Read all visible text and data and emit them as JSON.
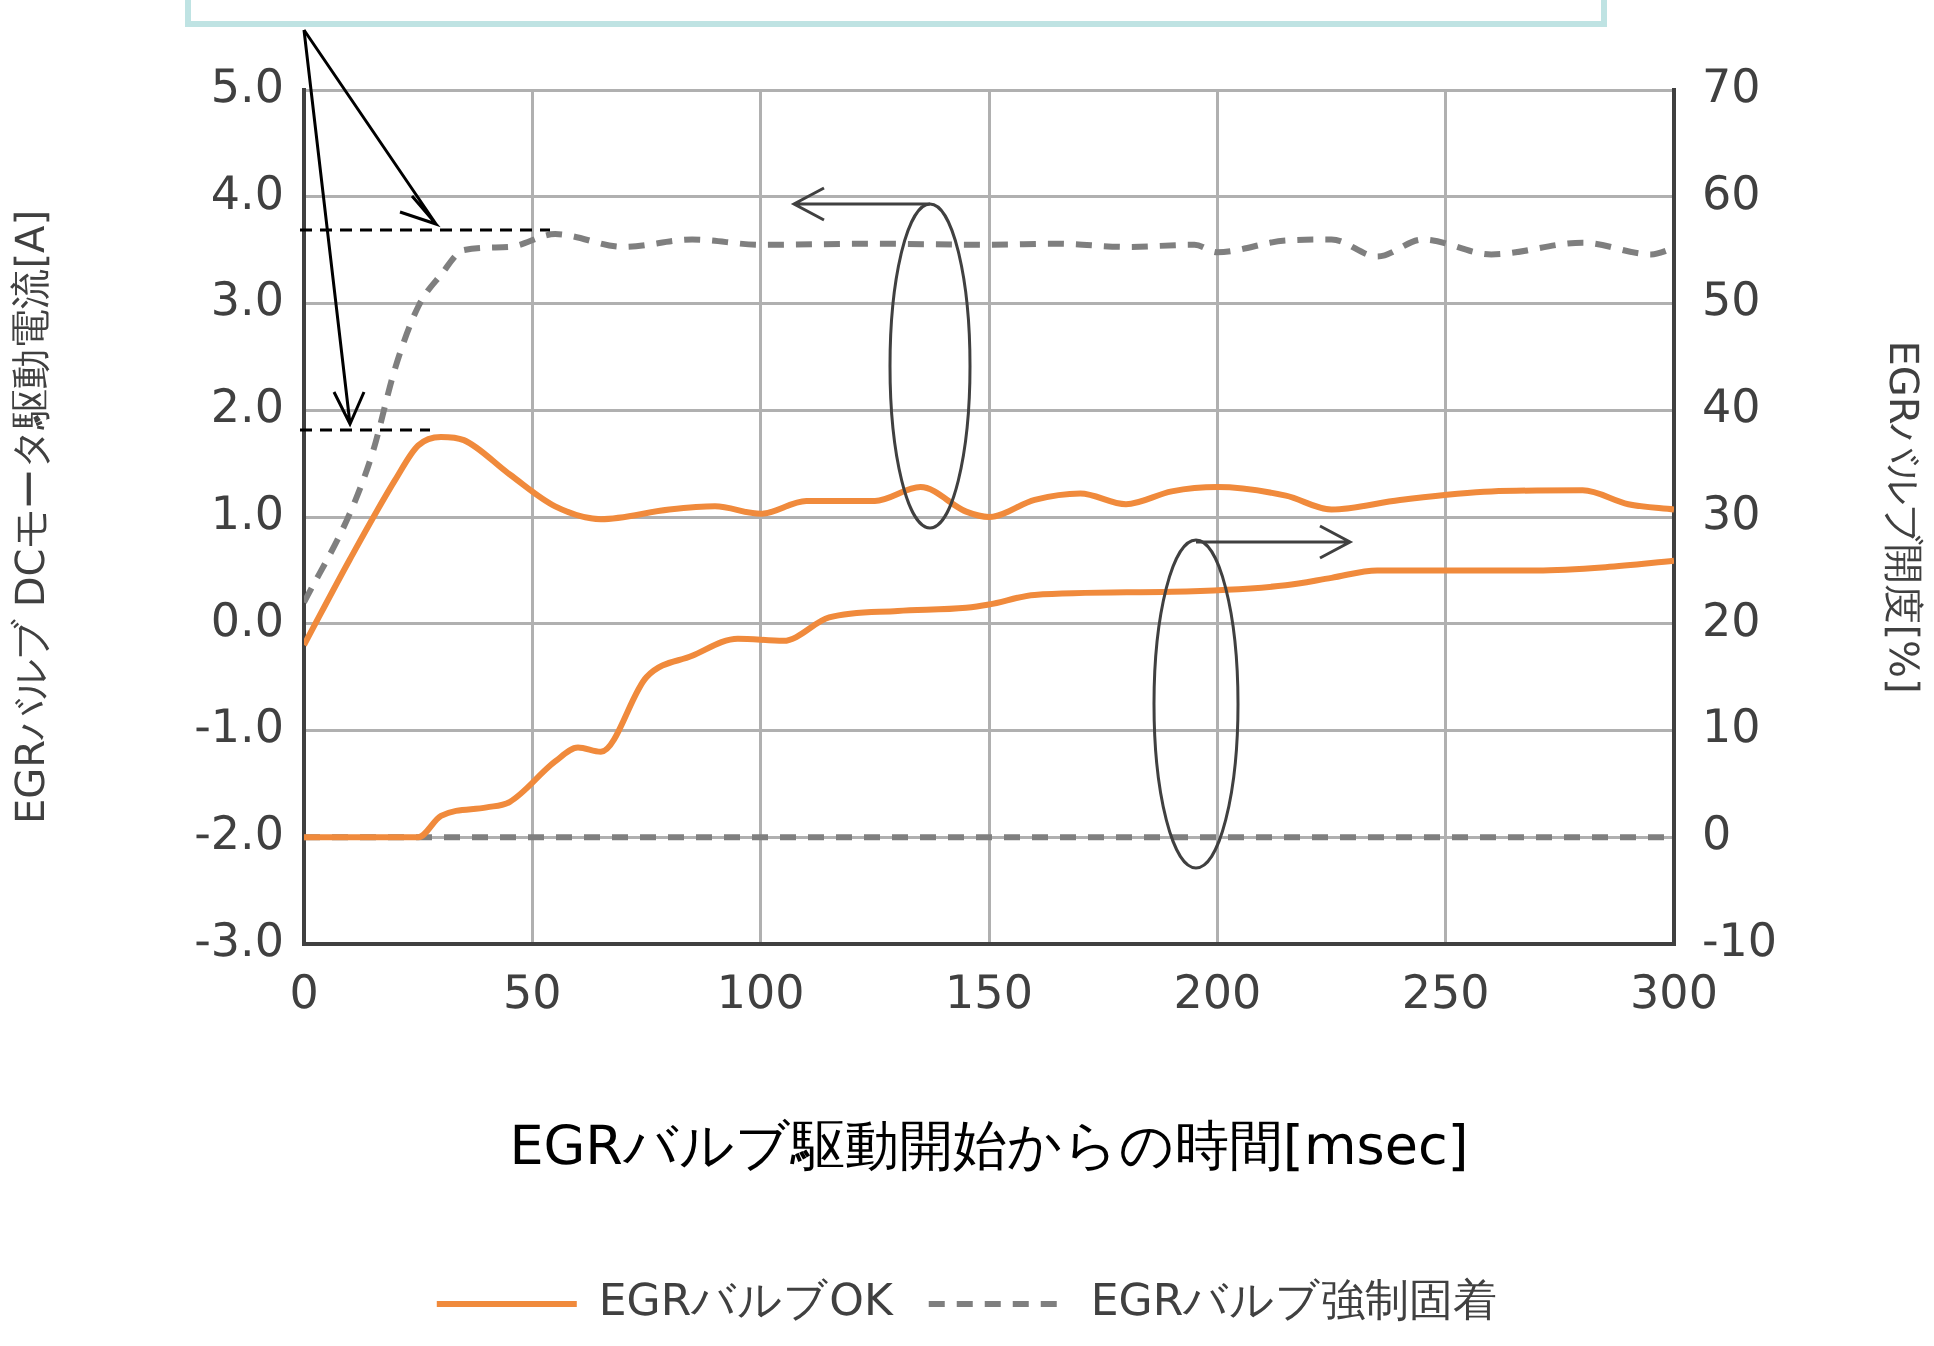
{
  "chart_data": {
    "type": "line",
    "xlabel": "EGRバルブ駆動開始からの時間[msec]",
    "ylabel": "EGRバルブ DCモータ駆動電流[A]",
    "y2label": "EGRバルブ開度[%]",
    "xlim": [
      0,
      300
    ],
    "xticks": [
      0,
      50,
      100,
      150,
      200,
      250,
      300
    ],
    "ylim": [
      -3,
      5
    ],
    "yticks": [
      {
        "value": -3,
        "label": "-3.0"
      },
      {
        "value": -2,
        "label": "-2.0"
      },
      {
        "value": -1,
        "label": "-1.0"
      },
      {
        "value": 0,
        "label": "0.0"
      },
      {
        "value": 1,
        "label": "1.0"
      },
      {
        "value": 2,
        "label": "2.0"
      },
      {
        "value": 3,
        "label": "3.0"
      },
      {
        "value": 4,
        "label": "4.0"
      },
      {
        "value": 5,
        "label": "5.0"
      }
    ],
    "y2lim": [
      -10,
      70
    ],
    "y2ticks": [
      -10,
      0,
      10,
      20,
      30,
      40,
      50,
      60,
      70
    ],
    "grid": true,
    "legend": "bottom",
    "marker": "none",
    "series": [
      {
        "name": "EGRバルブOK",
        "color": "#f08a3c",
        "line_style": "solid",
        "x": [
          0,
          10,
          20,
          25,
          30,
          35,
          45,
          55,
          65,
          80,
          90,
          100,
          110,
          125,
          135,
          145,
          150,
          160,
          170,
          180,
          190,
          200,
          215,
          225,
          240,
          260,
          280,
          290,
          300
        ],
        "values": [
          -0.2,
          0.6,
          1.35,
          1.67,
          1.75,
          1.72,
          1.4,
          1.1,
          0.98,
          1.07,
          1.1,
          1.03,
          1.15,
          1.15,
          1.28,
          1.05,
          1.0,
          1.16,
          1.22,
          1.12,
          1.24,
          1.28,
          1.2,
          1.07,
          1.16,
          1.24,
          1.25,
          1.12,
          1.07
        ]
      },
      {
        "name": "EGRバルブ強制固着",
        "color": "#7f7f7f",
        "line_style": "dashed",
        "x": [
          0,
          10,
          15,
          20,
          25,
          30,
          35,
          45,
          55,
          70,
          85,
          100,
          125,
          150,
          165,
          180,
          195,
          200,
          215,
          225,
          235,
          245,
          260,
          280,
          295,
          300
        ],
        "values": [
          0.2,
          1.03,
          1.6,
          2.4,
          2.97,
          3.27,
          3.5,
          3.53,
          3.65,
          3.53,
          3.6,
          3.55,
          3.56,
          3.55,
          3.56,
          3.53,
          3.55,
          3.48,
          3.59,
          3.6,
          3.44,
          3.6,
          3.46,
          3.57,
          3.46,
          3.52
        ]
      },
      {
        "color": "#f08a3c",
        "line_style": "solid",
        "axis": "y2",
        "x": [
          0,
          25,
          30,
          40,
          45,
          55,
          60,
          65,
          75,
          85,
          95,
          105,
          115,
          130,
          145,
          150,
          160,
          190,
          215,
          225,
          235,
          260,
          270,
          285,
          300
        ],
        "values": [
          0,
          0,
          2,
          2.8,
          3.3,
          7.1,
          8.4,
          8,
          15,
          17,
          18.6,
          18.4,
          20.6,
          21.2,
          21.5,
          21.8,
          22.7,
          23,
          23.6,
          24.3,
          25,
          25,
          25,
          25.3,
          25.9
        ]
      },
      {
        "color": "#7f7f7f",
        "line_style": "dashed",
        "axis": "y2",
        "x": [
          0,
          300
        ],
        "values": [
          0,
          0
        ]
      }
    ]
  }
}
